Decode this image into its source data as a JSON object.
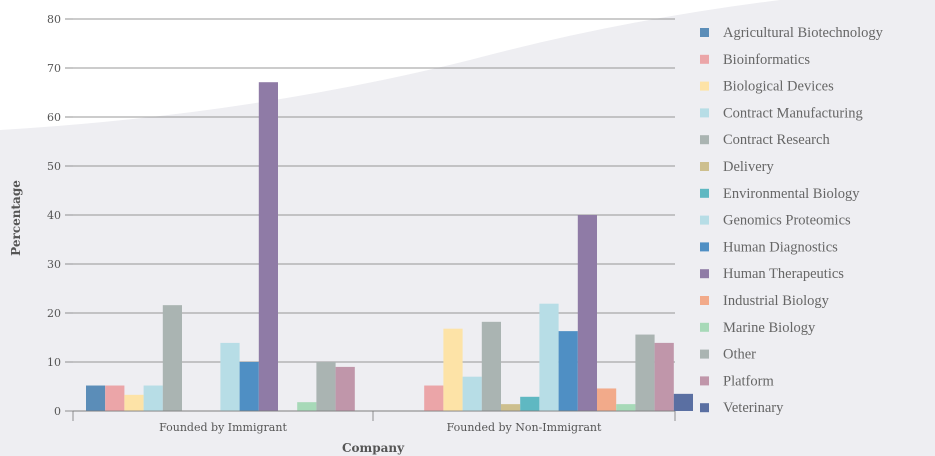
{
  "chart_data": {
    "type": "bar",
    "title": "",
    "xlabel": "Company",
    "ylabel": "Percentage",
    "ylim": [
      0,
      80
    ],
    "yticks": [
      0,
      10,
      20,
      30,
      40,
      50,
      60,
      70,
      80
    ],
    "grid": true,
    "legend_position": "right",
    "categories": [
      "Founded by Immigrant",
      "Founded by Non-Immigrant"
    ],
    "series": [
      {
        "name": "Agricultural Biotechnology",
        "color": "#5b8db8",
        "values": [
          5.2,
          0
        ]
      },
      {
        "name": "Bioinformatics",
        "color": "#eba5a8",
        "values": [
          5.2,
          5.2
        ]
      },
      {
        "name": "Biological Devices",
        "color": "#fde3a7",
        "values": [
          3.3,
          16.8
        ]
      },
      {
        "name": "Contract Manufacturing",
        "color": "#b7dde6",
        "values": [
          5.2,
          7.0
        ]
      },
      {
        "name": "Contract Research",
        "color": "#aab4b2",
        "values": [
          21.6,
          18.2
        ]
      },
      {
        "name": "Delivery",
        "color": "#cdbf8e",
        "values": [
          0,
          1.4
        ]
      },
      {
        "name": "Environmental Biology",
        "color": "#5fb8c2",
        "values": [
          0,
          2.9
        ]
      },
      {
        "name": "Genomics Proteomics",
        "color": "#b7dde6",
        "values": [
          13.9,
          21.9
        ]
      },
      {
        "name": "Human Diagnostics",
        "color": "#4f8fc4",
        "values": [
          10.0,
          16.3
        ]
      },
      {
        "name": "Human Therapeutics",
        "color": "#8f7ba6",
        "values": [
          67.1,
          40.0
        ]
      },
      {
        "name": "Industrial Biology",
        "color": "#f2aa8a",
        "values": [
          0,
          4.6
        ]
      },
      {
        "name": "Marine Biology",
        "color": "#a7d9b8",
        "values": [
          1.8,
          1.4
        ]
      },
      {
        "name": "Other",
        "color": "#aab4b2",
        "values": [
          10.0,
          15.6
        ]
      },
      {
        "name": "Platform",
        "color": "#c096aa",
        "values": [
          9.0,
          13.9
        ]
      },
      {
        "name": "Veterinary",
        "color": "#5a6fa2",
        "values": [
          0,
          3.5
        ]
      }
    ]
  }
}
